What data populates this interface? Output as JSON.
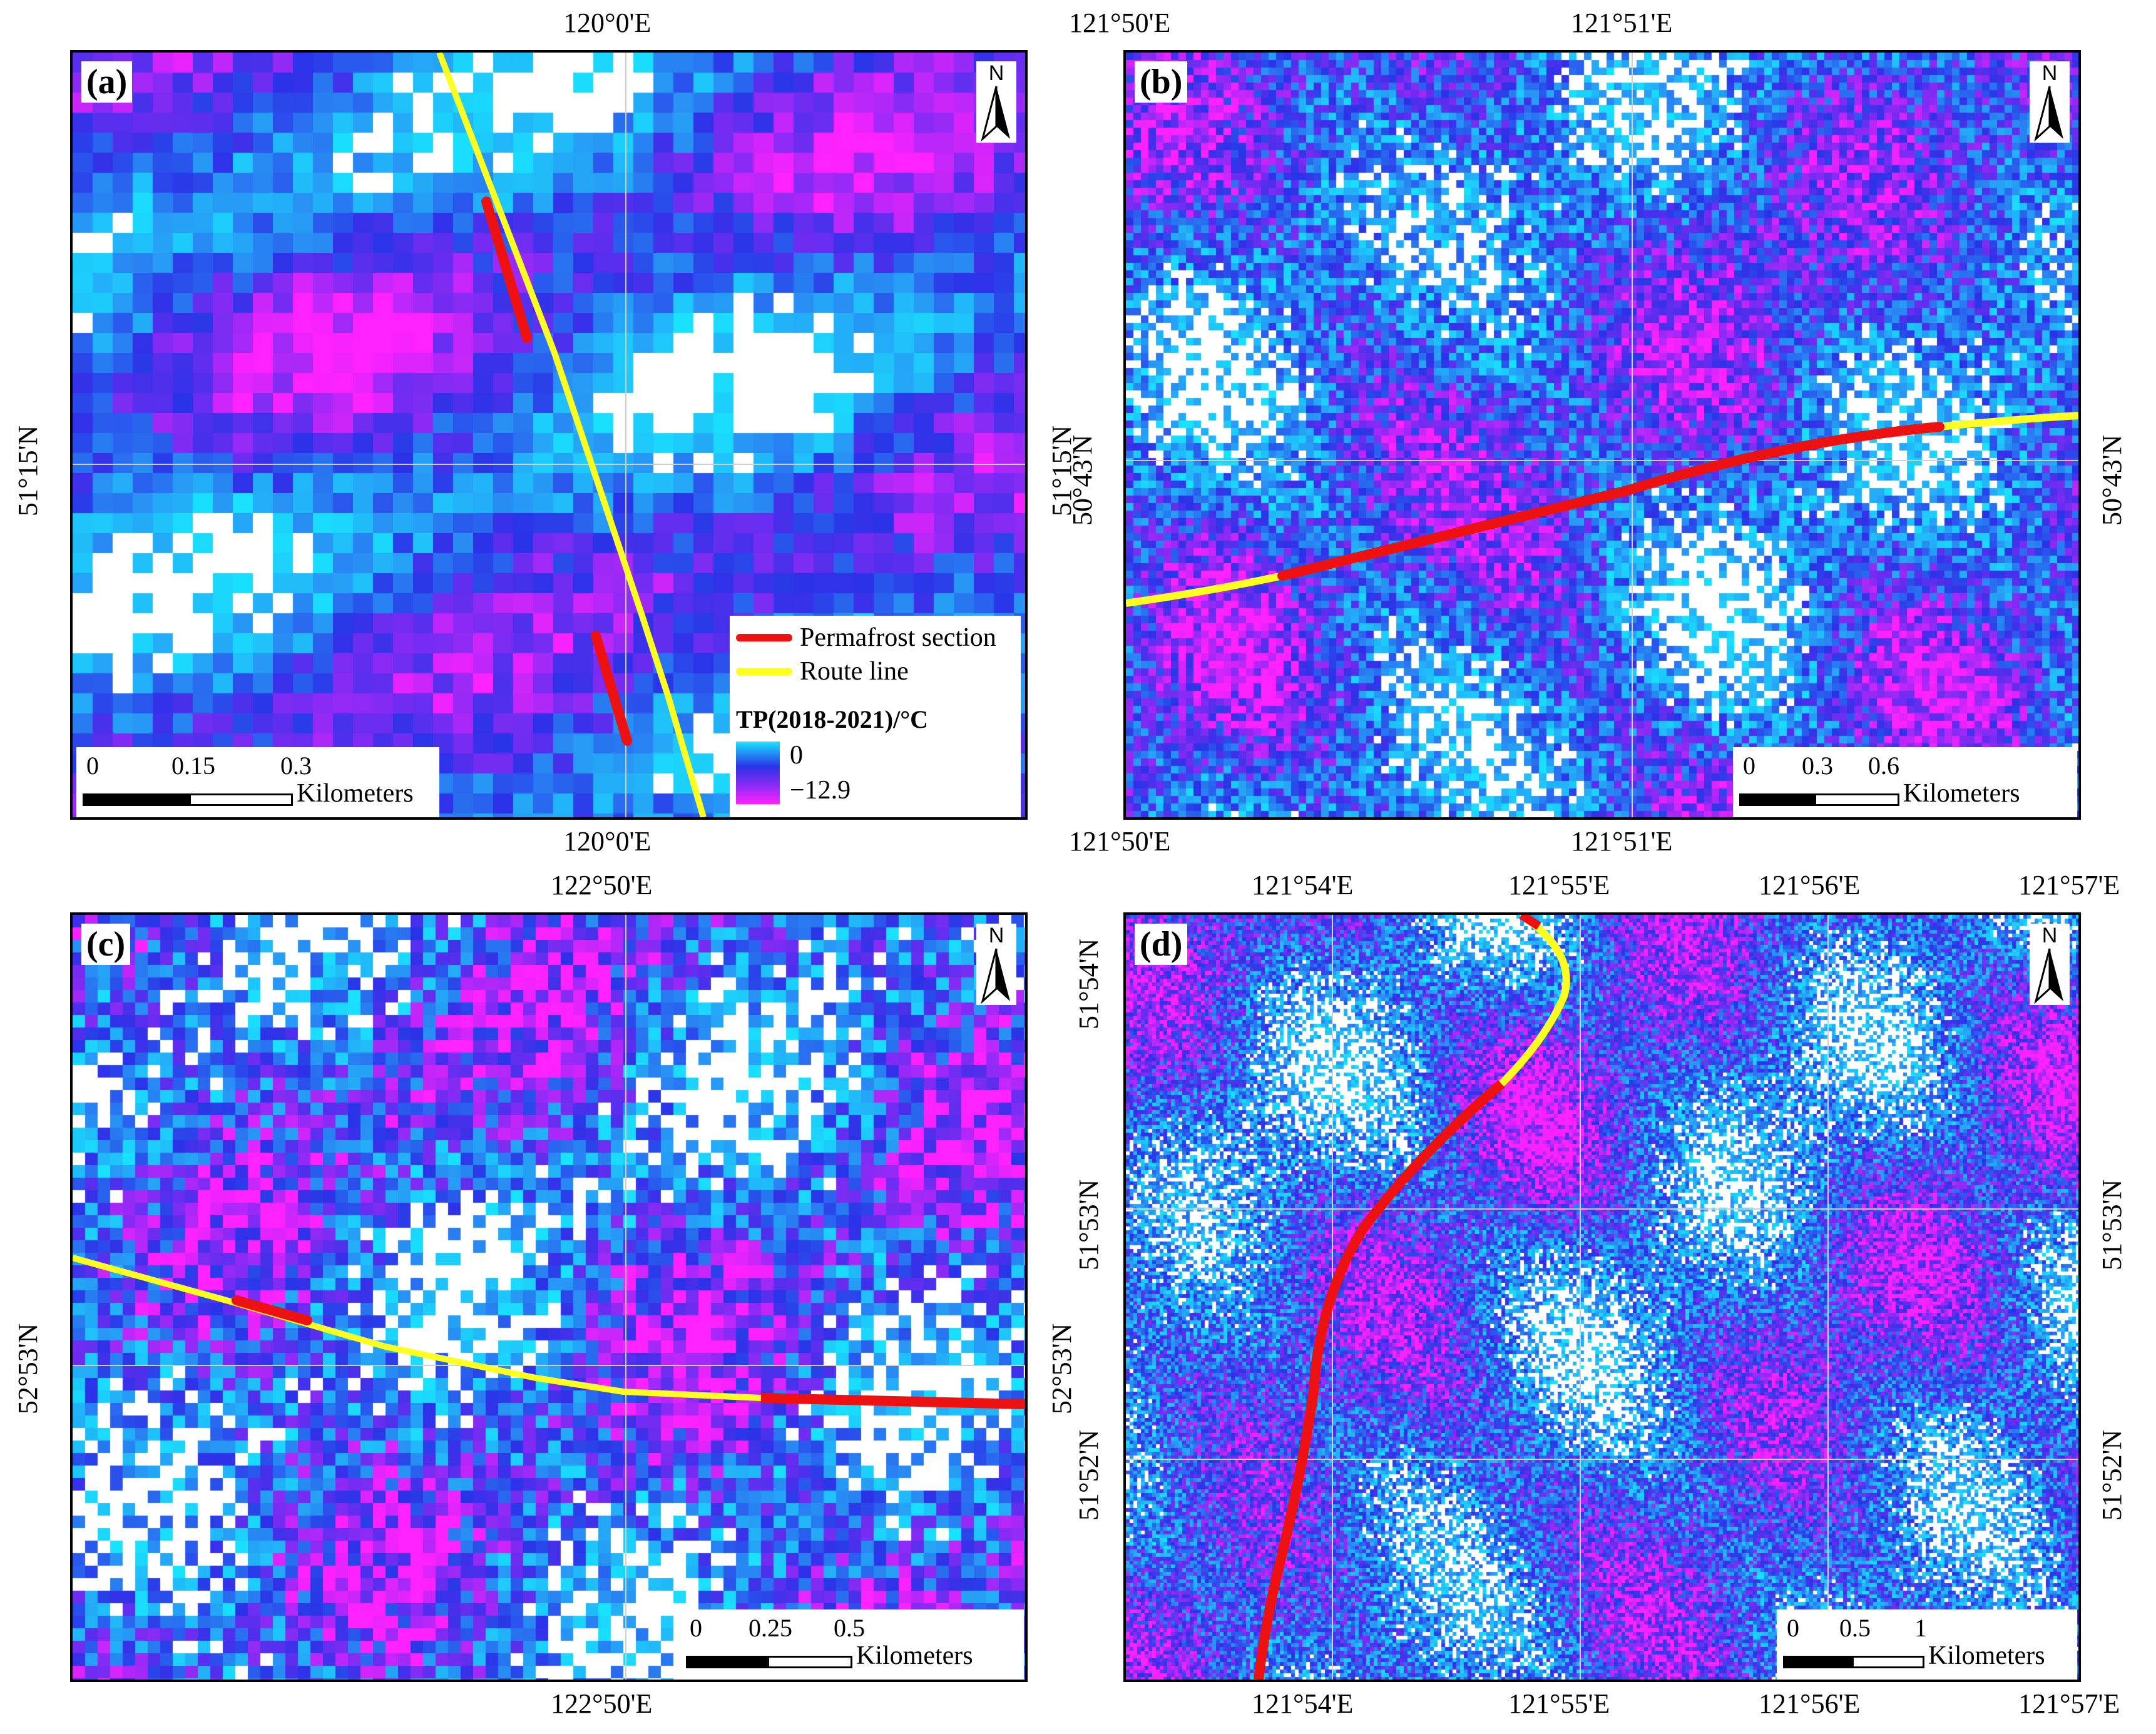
{
  "panels": [
    {
      "id": "a",
      "label": "(a)",
      "north": "N",
      "top_ticks": [
        "120°0'E"
      ],
      "bottom_ticks": [
        "120°0'E"
      ],
      "left_ticks": [
        "51°15'N"
      ],
      "right_ticks": [
        "51°15'N"
      ],
      "scale": {
        "labels": [
          "0",
          "0.15",
          "0.3"
        ],
        "unit": "Kilometers"
      },
      "legend": {
        "permafrost_label": "Permafrost section",
        "route_label": "Route line",
        "title": "TP(2018-2021)/°C",
        "max_label": "0",
        "min_label": "−12.9"
      }
    },
    {
      "id": "b",
      "label": "(b)",
      "north": "N",
      "top_ticks": [
        "121°50'E",
        "121°51'E"
      ],
      "bottom_ticks": [
        "121°50'E",
        "121°51'E"
      ],
      "left_ticks": [
        "50°43'N"
      ],
      "right_ticks": [
        "50°43'N"
      ],
      "scale": {
        "labels": [
          "0",
          "0.3",
          "0.6"
        ],
        "unit": "Kilometers"
      }
    },
    {
      "id": "c",
      "label": "(c)",
      "north": "N",
      "top_ticks": [
        "122°50'E"
      ],
      "bottom_ticks": [
        "122°50'E"
      ],
      "left_ticks": [
        "52°53'N"
      ],
      "right_ticks": [
        "52°53'N"
      ],
      "scale": {
        "labels": [
          "0",
          "0.25",
          "0.5"
        ],
        "unit": "Kilometers"
      }
    },
    {
      "id": "d",
      "label": "(d)",
      "north": "N",
      "top_ticks": [
        "121°54'E",
        "121°55'E",
        "121°56'E",
        "121°57'E"
      ],
      "bottom_ticks": [
        "121°54'E",
        "121°55'E",
        "121°56'E",
        "121°57'E"
      ],
      "left_ticks": [
        "51°54'N",
        "51°53'N",
        "51°52'N"
      ],
      "right_ticks": [
        "51°53'N",
        "51°52'N"
      ],
      "scale": {
        "labels": [
          "0",
          "0.5",
          "1"
        ],
        "unit": "Kilometers"
      }
    }
  ],
  "colors": {
    "permafrost": "#ee1111",
    "route": "#ffff22",
    "ramp_warm": "#19e3ff",
    "ramp_cold": "#ff22ff"
  }
}
